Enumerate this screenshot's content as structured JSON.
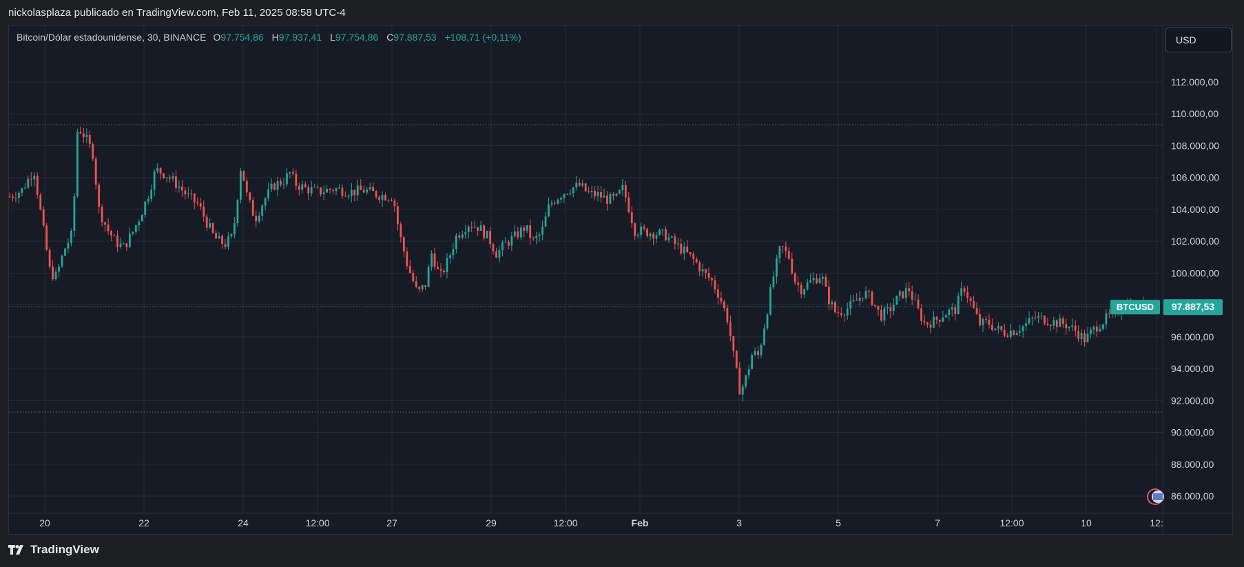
{
  "header": {
    "published_by": "nickolasplaza publicado en TradingView.com, Feb 11, 2025 08:58 UTC-4"
  },
  "legend": {
    "symbol": "Bitcoin/Dólar estadounidense, 30, BINANCE",
    "open_label": "O",
    "open": "97.754,86",
    "high_label": "H",
    "high": "97.937,41",
    "low_label": "L",
    "low": "97.754,86",
    "close_label": "C",
    "close": "97.887,53",
    "change": "+108,71 (+0,11%)"
  },
  "currency_button": "USD",
  "brand": {
    "name": "TradingView"
  },
  "colors": {
    "up": "#26a69a",
    "down": "#ef5350",
    "background": "#171b26",
    "grid": "#262b36"
  },
  "chart_data": {
    "type": "candlestick",
    "symbol": "BTCUSD",
    "timeframe": "30",
    "x_tick_labels": [
      "20",
      "22",
      "24",
      "12:00",
      "27",
      "29",
      "12:00",
      "Feb",
      "3",
      "5",
      "7",
      "12:00",
      "10",
      "12:"
    ],
    "y_tick_labels": [
      "112.000,00",
      "110.000,00",
      "108.000,00",
      "106.000,00",
      "104.000,00",
      "102.000,00",
      "100.000,00",
      "96.000,00",
      "94.000,00",
      "92.000,00",
      "90.000,00",
      "88.000,00",
      "86.000,00"
    ],
    "y_ticks": [
      112000,
      110000,
      108000,
      106000,
      104000,
      102000,
      100000,
      96000,
      94000,
      92000,
      90000,
      88000,
      86000
    ],
    "ylim": [
      85000,
      114000
    ],
    "last_price": 97887.53,
    "last_price_label": "97.887,53",
    "last_price_tag": "BTCUSD",
    "horizontal_lines": [
      109320,
      97887.53,
      91270
    ],
    "price_path": [
      [
        0,
        104800
      ],
      [
        0.6,
        105200
      ],
      [
        1.2,
        106500
      ],
      [
        1.6,
        103200
      ],
      [
        2,
        100000
      ],
      [
        2.3,
        99800
      ],
      [
        2.7,
        101500
      ],
      [
        3.1,
        102500
      ],
      [
        3.35,
        109200
      ],
      [
        3.7,
        108600
      ],
      [
        4.1,
        107500
      ],
      [
        4.4,
        104000
      ],
      [
        4.8,
        102800
      ],
      [
        5.2,
        102000
      ],
      [
        5.6,
        101600
      ],
      [
        6,
        102400
      ],
      [
        6.4,
        103500
      ],
      [
        6.8,
        104800
      ],
      [
        7.2,
        106500
      ],
      [
        7.7,
        106200
      ],
      [
        8.3,
        105500
      ],
      [
        8.8,
        104800
      ],
      [
        9.3,
        104300
      ],
      [
        9.7,
        103200
      ],
      [
        10.1,
        102200
      ],
      [
        10.6,
        101800
      ],
      [
        11.0,
        102300
      ],
      [
        11.4,
        106800
      ],
      [
        11.7,
        104800
      ],
      [
        12.1,
        103400
      ],
      [
        12.5,
        104500
      ],
      [
        13.0,
        105500
      ],
      [
        13.5,
        105800
      ],
      [
        13.8,
        106300
      ],
      [
        14.1,
        105600
      ],
      [
        14.6,
        105300
      ],
      [
        15.2,
        105100
      ],
      [
        16.0,
        105300
      ],
      [
        16.8,
        105100
      ],
      [
        17.5,
        105200
      ],
      [
        18.2,
        104900
      ],
      [
        18.9,
        104800
      ],
      [
        19.2,
        102500
      ],
      [
        19.6,
        100500
      ],
      [
        20.1,
        98700
      ],
      [
        20.5,
        99300
      ],
      [
        20.8,
        101300
      ],
      [
        21.2,
        99700
      ],
      [
        21.6,
        100800
      ],
      [
        22.0,
        102300
      ],
      [
        22.6,
        103100
      ],
      [
        23.1,
        102900
      ],
      [
        23.6,
        102200
      ],
      [
        24.0,
        101200
      ],
      [
        24.4,
        101800
      ],
      [
        24.9,
        102300
      ],
      [
        25.4,
        102900
      ],
      [
        25.8,
        102000
      ],
      [
        26.2,
        102500
      ],
      [
        26.6,
        104300
      ],
      [
        27.1,
        104900
      ],
      [
        27.6,
        105300
      ],
      [
        28.1,
        105500
      ],
      [
        28.5,
        105000
      ],
      [
        29.0,
        104900
      ],
      [
        29.5,
        104600
      ],
      [
        29.9,
        104700
      ],
      [
        30.2,
        105300
      ],
      [
        30.4,
        104600
      ],
      [
        30.8,
        102700
      ],
      [
        31.3,
        102600
      ],
      [
        31.8,
        102500
      ],
      [
        32.3,
        102400
      ],
      [
        32.8,
        101800
      ],
      [
        33.3,
        101300
      ],
      [
        33.8,
        100700
      ],
      [
        34.2,
        100000
      ],
      [
        34.6,
        99500
      ],
      [
        35.0,
        98500
      ],
      [
        35.4,
        97000
      ],
      [
        35.7,
        94500
      ],
      [
        36.0,
        92500
      ],
      [
        36.3,
        93500
      ],
      [
        36.6,
        95000
      ],
      [
        36.9,
        94800
      ],
      [
        37.3,
        97500
      ],
      [
        37.6,
        99600
      ],
      [
        38.0,
        101700
      ],
      [
        38.4,
        101000
      ],
      [
        38.7,
        99500
      ],
      [
        39.0,
        99000
      ],
      [
        39.5,
        99500
      ],
      [
        40.0,
        99900
      ],
      [
        40.3,
        98500
      ],
      [
        40.7,
        97500
      ],
      [
        41.2,
        97700
      ],
      [
        41.7,
        98200
      ],
      [
        42.1,
        98800
      ],
      [
        42.5,
        98300
      ],
      [
        42.9,
        97300
      ],
      [
        43.3,
        97600
      ],
      [
        43.8,
        98500
      ],
      [
        44.3,
        99000
      ],
      [
        44.7,
        97800
      ],
      [
        45.1,
        96800
      ],
      [
        45.6,
        97000
      ],
      [
        46.1,
        97500
      ],
      [
        46.6,
        97700
      ],
      [
        47.0,
        99200
      ],
      [
        47.4,
        98000
      ],
      [
        47.8,
        96800
      ],
      [
        48.2,
        96900
      ],
      [
        48.6,
        96500
      ],
      [
        49.0,
        96300
      ],
      [
        49.5,
        96400
      ],
      [
        50.0,
        96700
      ],
      [
        50.5,
        97200
      ],
      [
        51.0,
        97100
      ],
      [
        51.5,
        96900
      ],
      [
        52.0,
        96800
      ],
      [
        52.5,
        96400
      ],
      [
        53.0,
        95800
      ],
      [
        53.5,
        96600
      ],
      [
        54.0,
        97100
      ],
      [
        54.5,
        97500
      ],
      [
        55.0,
        98000
      ],
      [
        55.5,
        97800
      ],
      [
        56.0,
        97900
      ]
    ],
    "candle_count": 370,
    "grid": true
  }
}
